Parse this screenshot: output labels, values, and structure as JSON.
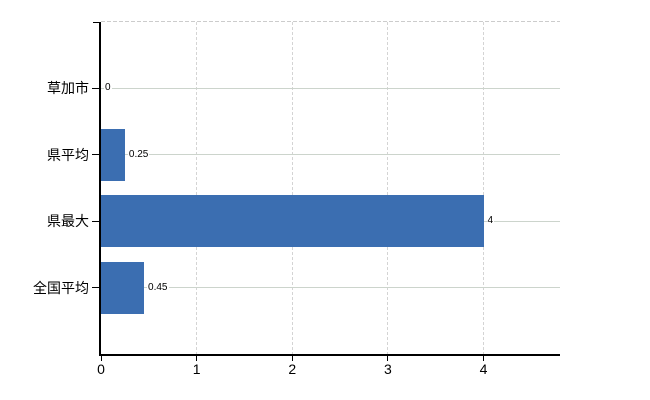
{
  "chart_data": {
    "type": "bar",
    "orientation": "horizontal",
    "title": "",
    "categories": [
      "草加市",
      "県平均",
      "県最大",
      "全国平均"
    ],
    "series": [
      {
        "name": "value",
        "values": [
          0,
          0.25,
          4,
          0.45
        ],
        "value_labels": [
          "0",
          "0.25",
          "4",
          "0.45"
        ]
      }
    ],
    "xlabel": "",
    "ylabel": "",
    "xlim": [
      0,
      4.8
    ],
    "xticks": [
      0,
      1,
      2,
      3,
      4
    ],
    "xtick_labels": [
      "0",
      "1",
      "2",
      "3",
      "4"
    ],
    "grid": true,
    "legend": false,
    "colors": {
      "bar": "#3b6eb1",
      "axis": "#000000",
      "h_gridline": "#ccd4cc",
      "v_gridline": "#d4d4d4",
      "top_border": "#cccccc",
      "text": "#000000",
      "background": "#ffffff"
    }
  }
}
